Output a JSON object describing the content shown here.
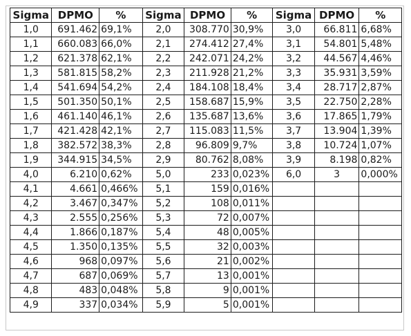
{
  "table": {
    "headers": [
      "Sigma",
      "DPMO",
      "%",
      "Sigma",
      "DPMO",
      "%",
      "Sigma",
      "DPMO",
      "%"
    ],
    "rows": [
      [
        [
          "1,0",
          "691.462",
          "69,1%"
        ],
        [
          "2,0",
          "308.770",
          "30,9%"
        ],
        [
          "3,0",
          "66.811",
          "6,68%"
        ]
      ],
      [
        [
          "1,1",
          "660.083",
          "66,0%"
        ],
        [
          "2,1",
          "274.412",
          "27,4%"
        ],
        [
          "3,1",
          "54.801",
          "5,48%"
        ]
      ],
      [
        [
          "1,2",
          "621.378",
          "62,1%"
        ],
        [
          "2,2",
          "242.071",
          "24,2%"
        ],
        [
          "3,2",
          "44.567",
          "4,46%"
        ]
      ],
      [
        [
          "1,3",
          "581.815",
          "58,2%"
        ],
        [
          "2,3",
          "211.928",
          "21,2%"
        ],
        [
          "3,3",
          "35.931",
          "3,59%"
        ]
      ],
      [
        [
          "1,4",
          "541.694",
          "54,2%"
        ],
        [
          "2,4",
          "184.108",
          "18,4%"
        ],
        [
          "3,4",
          "28.717",
          "2,87%"
        ]
      ],
      [
        [
          "1,5",
          "501.350",
          "50,1%"
        ],
        [
          "2,5",
          "158.687",
          "15,9%"
        ],
        [
          "3,5",
          "22.750",
          "2,28%"
        ]
      ],
      [
        [
          "1,6",
          "461.140",
          "46,1%"
        ],
        [
          "2,6",
          "135.687",
          "13,6%"
        ],
        [
          "3,6",
          "17.865",
          "1,79%"
        ]
      ],
      [
        [
          "1,7",
          "421.428",
          "42,1%"
        ],
        [
          "2,7",
          "115.083",
          "11,5%"
        ],
        [
          "3,7",
          "13.904",
          "1,39%"
        ]
      ],
      [
        [
          "1,8",
          "382.572",
          "38,3%"
        ],
        [
          "2,8",
          "96.809",
          "9,7%"
        ],
        [
          "3,8",
          "10.724",
          "1,07%"
        ]
      ],
      [
        [
          "1,9",
          "344.915",
          "34,5%"
        ],
        [
          "2,9",
          "80.762",
          "8,08%"
        ],
        [
          "3,9",
          "8.198",
          "0,82%"
        ]
      ],
      [
        [
          "4,0",
          "6.210",
          "0,62%"
        ],
        [
          "5,0",
          "233",
          "0,023%"
        ],
        [
          "6,0",
          "3",
          "0,000%"
        ]
      ],
      [
        [
          "4,1",
          "4.661",
          "0,466%"
        ],
        [
          "5,1",
          "159",
          "0,016%"
        ],
        [
          "",
          "",
          ""
        ]
      ],
      [
        [
          "4,2",
          "3.467",
          "0,347%"
        ],
        [
          "5,2",
          "108",
          "0,011%"
        ],
        [
          "",
          "",
          ""
        ]
      ],
      [
        [
          "4,3",
          "2.555",
          "0,256%"
        ],
        [
          "5,3",
          "72",
          "0,007%"
        ],
        [
          "",
          "",
          ""
        ]
      ],
      [
        [
          "4,4",
          "1.866",
          "0,187%"
        ],
        [
          "5,4",
          "48",
          "0,005%"
        ],
        [
          "",
          "",
          ""
        ]
      ],
      [
        [
          "4,5",
          "1.350",
          "0,135%"
        ],
        [
          "5,5",
          "32",
          "0,003%"
        ],
        [
          "",
          "",
          ""
        ]
      ],
      [
        [
          "4,6",
          "968",
          "0,097%"
        ],
        [
          "5,6",
          "21",
          "0,002%"
        ],
        [
          "",
          "",
          ""
        ]
      ],
      [
        [
          "4,7",
          "687",
          "0,069%"
        ],
        [
          "5,7",
          "13",
          "0,001%"
        ],
        [
          "",
          "",
          ""
        ]
      ],
      [
        [
          "4,8",
          "483",
          "0,048%"
        ],
        [
          "5,8",
          "9",
          "0,001%"
        ],
        [
          "",
          "",
          ""
        ]
      ],
      [
        [
          "4,9",
          "337",
          "0,034%"
        ],
        [
          "5,9",
          "5",
          "0,001%"
        ],
        [
          "",
          "",
          ""
        ]
      ]
    ]
  }
}
